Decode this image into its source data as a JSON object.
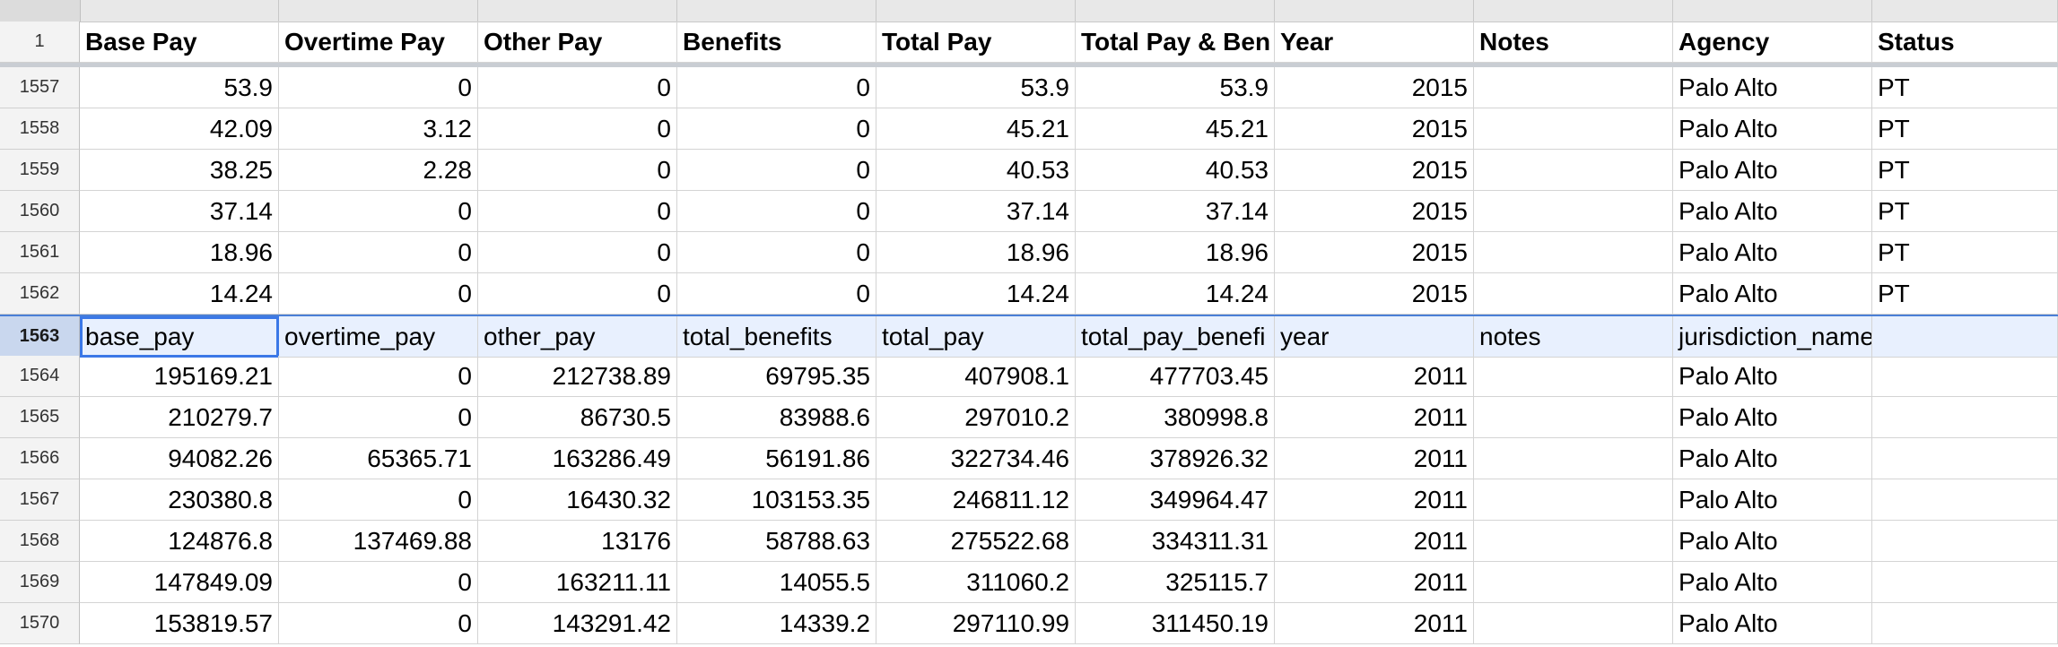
{
  "sheet": {
    "header_row": {
      "row_number": "1",
      "cells": [
        "Base Pay",
        "Overtime Pay",
        "Other Pay",
        "Benefits",
        "Total Pay",
        "Total Pay & Ben",
        "Year",
        "Notes",
        "Agency",
        "Status"
      ]
    },
    "rows": [
      {
        "n": "1557",
        "cells": [
          "53.9",
          "0",
          "0",
          "0",
          "53.9",
          "53.9",
          "2015",
          "",
          "Palo Alto",
          "PT"
        ]
      },
      {
        "n": "1558",
        "cells": [
          "42.09",
          "3.12",
          "0",
          "0",
          "45.21",
          "45.21",
          "2015",
          "",
          "Palo Alto",
          "PT"
        ]
      },
      {
        "n": "1559",
        "cells": [
          "38.25",
          "2.28",
          "0",
          "0",
          "40.53",
          "40.53",
          "2015",
          "",
          "Palo Alto",
          "PT"
        ]
      },
      {
        "n": "1560",
        "cells": [
          "37.14",
          "0",
          "0",
          "0",
          "37.14",
          "37.14",
          "2015",
          "",
          "Palo Alto",
          "PT"
        ]
      },
      {
        "n": "1561",
        "cells": [
          "18.96",
          "0",
          "0",
          "0",
          "18.96",
          "18.96",
          "2015",
          "",
          "Palo Alto",
          "PT"
        ]
      },
      {
        "n": "1562",
        "cells": [
          "14.24",
          "0",
          "0",
          "0",
          "14.24",
          "14.24",
          "2015",
          "",
          "Palo Alto",
          "PT"
        ]
      },
      {
        "n": "1563",
        "cells": [
          "base_pay",
          "overtime_pay",
          "other_pay",
          "total_benefits",
          "total_pay",
          "total_pay_benefi",
          "year",
          "notes",
          "jurisdiction_name",
          ""
        ]
      },
      {
        "n": "1564",
        "cells": [
          "195169.21",
          "0",
          "212738.89",
          "69795.35",
          "407908.1",
          "477703.45",
          "2011",
          "",
          "Palo Alto",
          ""
        ]
      },
      {
        "n": "1565",
        "cells": [
          "210279.7",
          "0",
          "86730.5",
          "83988.6",
          "297010.2",
          "380998.8",
          "2011",
          "",
          "Palo Alto",
          ""
        ]
      },
      {
        "n": "1566",
        "cells": [
          "94082.26",
          "65365.71",
          "163286.49",
          "56191.86",
          "322734.46",
          "378926.32",
          "2011",
          "",
          "Palo Alto",
          ""
        ]
      },
      {
        "n": "1567",
        "cells": [
          "230380.8",
          "0",
          "16430.32",
          "103153.35",
          "246811.12",
          "349964.47",
          "2011",
          "",
          "Palo Alto",
          ""
        ]
      },
      {
        "n": "1568",
        "cells": [
          "124876.8",
          "137469.88",
          "13176",
          "58788.63",
          "275522.68",
          "334311.31",
          "2011",
          "",
          "Palo Alto",
          ""
        ]
      },
      {
        "n": "1569",
        "cells": [
          "147849.09",
          "0",
          "163211.11",
          "14055.5",
          "311060.2",
          "325115.7",
          "2011",
          "",
          "Palo Alto",
          ""
        ]
      },
      {
        "n": "1570",
        "cells": [
          "153819.57",
          "0",
          "143291.42",
          "14339.2",
          "297110.99",
          "311450.19",
          "2011",
          "",
          "Palo Alto",
          ""
        ]
      }
    ]
  }
}
